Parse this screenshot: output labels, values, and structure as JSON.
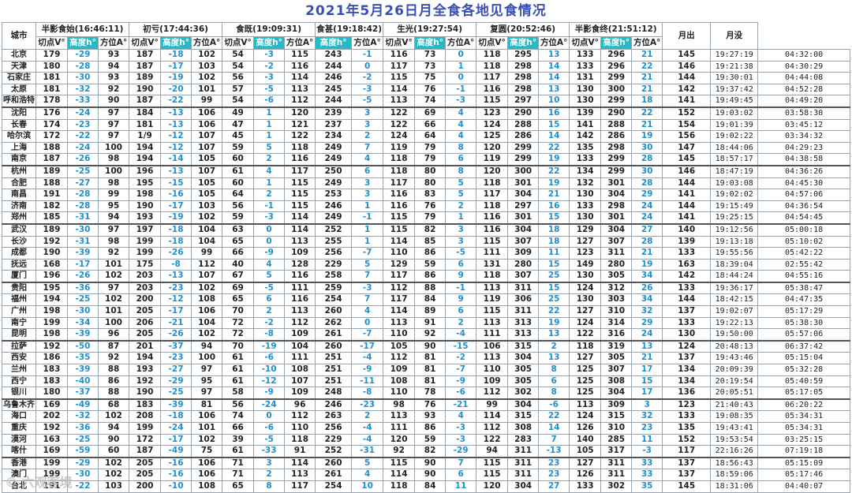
{
  "title": "2021年5月26日月全食各地见食情况",
  "headers": {
    "city": "城市",
    "events": [
      {
        "name": "半影食始(16:46:11)",
        "cols": [
          "切点V°",
          "高度h°",
          "方位A°"
        ]
      },
      {
        "name": "初亏(17:44:36)",
        "cols": [
          "切点V°",
          "高度h°",
          "方位A°"
        ]
      },
      {
        "name": "食既(19:09:31)",
        "cols": [
          "切点V°",
          "高度h°",
          "方位A°"
        ]
      },
      {
        "name": "食甚(19:18:42)",
        "cols": [
          "高度h°",
          "方位A°"
        ]
      },
      {
        "name": "生光(19:27:54)",
        "cols": [
          "切点V°",
          "高度h°",
          "方位A°"
        ]
      },
      {
        "name": "复圆(20:52:46)",
        "cols": [
          "切点V°",
          "高度h°",
          "方位A°"
        ]
      },
      {
        "name": "半影食终(21:51:12)",
        "cols": [
          "切点V°",
          "高度h°",
          "方位A°"
        ]
      }
    ],
    "moonrise": "月出",
    "moonset": "月没"
  },
  "rows": [
    [
      "北京",
      "179",
      "-29",
      "93",
      "187",
      "-18",
      "102",
      "54",
      "-3",
      "115",
      "243",
      "-1",
      "116",
      "73",
      "0",
      "118",
      "295",
      "13",
      "133",
      "296",
      "21",
      "145",
      "19:27:19",
      "04:32:00"
    ],
    [
      "天津",
      "180",
      "-28",
      "94",
      "187",
      "-17",
      "103",
      "54",
      "-2",
      "116",
      "244",
      "0",
      "117",
      "73",
      "1",
      "118",
      "298",
      "14",
      "133",
      "296",
      "22",
      "146",
      "19:21:38",
      "04:30:29"
    ],
    [
      "石家庄",
      "181",
      "-30",
      "93",
      "189",
      "-19",
      "102",
      "56",
      "-3",
      "114",
      "246",
      "-2",
      "115",
      "75",
      "0",
      "117",
      "298",
      "14",
      "131",
      "299",
      "21",
      "144",
      "19:30:01",
      "04:44:08"
    ],
    [
      "太原",
      "181",
      "-32",
      "92",
      "190",
      "-20",
      "101",
      "57",
      "-5",
      "113",
      "245",
      "-3",
      "114",
      "76",
      "-1",
      "116",
      "298",
      "13",
      "130",
      "300",
      "21",
      "142",
      "19:37:42",
      "04:52:28"
    ],
    [
      "呼和浩特",
      "178",
      "-33",
      "90",
      "187",
      "-22",
      "99",
      "54",
      "-6",
      "112",
      "244",
      "-5",
      "113",
      "74",
      "-3",
      "115",
      "297",
      "10",
      "130",
      "299",
      "18",
      "141",
      "19:49:45",
      "04:49:20"
    ],
    [
      "沈阳",
      "176",
      "-24",
      "97",
      "184",
      "-13",
      "106",
      "49",
      "1",
      "120",
      "239",
      "3",
      "122",
      "69",
      "4",
      "123",
      "290",
      "16",
      "139",
      "290",
      "22",
      "152",
      "19:03:02",
      "03:58:30"
    ],
    [
      "长春",
      "174",
      "-23",
      "97",
      "181",
      "-13",
      "106",
      "47",
      "1",
      "121",
      "237",
      "3",
      "122",
      "66",
      "4",
      "124",
      "288",
      "15",
      "141",
      "288",
      "21",
      "154",
      "19:01:39",
      "03:45:12"
    ],
    [
      "哈尔滨",
      "172",
      "-22",
      "97",
      "1/9",
      "-12",
      "107",
      "45",
      "1",
      "122",
      "234",
      "2",
      "124",
      "64",
      "4",
      "125",
      "286",
      "14",
      "142",
      "286",
      "19",
      "156",
      "19:02:22",
      "03:34:32"
    ],
    [
      "上海",
      "188",
      "-24",
      "100",
      "194",
      "-12",
      "107",
      "59",
      "5",
      "118",
      "249",
      "7",
      "119",
      "79",
      "8",
      "120",
      "299",
      "22",
      "135",
      "298",
      "30",
      "147",
      "18:44:06",
      "04:29:23"
    ],
    [
      "南京",
      "187",
      "-26",
      "98",
      "194",
      "-14",
      "105",
      "60",
      "2",
      "116",
      "249",
      "4",
      "118",
      "79",
      "6",
      "119",
      "299",
      "19",
      "133",
      "299",
      "28",
      "145",
      "18:57:17",
      "04:38:58"
    ],
    [
      "杭州",
      "189",
      "-25",
      "100",
      "196",
      "-13",
      "107",
      "61",
      "4",
      "117",
      "250",
      "6",
      "118",
      "80",
      "8",
      "120",
      "300",
      "22",
      "134",
      "299",
      "30",
      "146",
      "18:47:19",
      "04:36:26"
    ],
    [
      "合肥",
      "188",
      "-27",
      "98",
      "195",
      "-15",
      "105",
      "60",
      "1",
      "115",
      "249",
      "3",
      "117",
      "80",
      "5",
      "118",
      "301",
      "19",
      "132",
      "301",
      "28",
      "144",
      "19:03:08",
      "04:45:30"
    ],
    [
      "南昌",
      "191",
      "-28",
      "99",
      "198",
      "-16",
      "105",
      "64",
      "2",
      "115",
      "253",
      "3",
      "116",
      "83",
      "5",
      "117",
      "304",
      "21",
      "130",
      "304",
      "29",
      "141",
      "19:02:02",
      "04:57:06"
    ],
    [
      "济南",
      "182",
      "-28",
      "95",
      "190",
      "-17",
      "103",
      "56",
      "-1",
      "115",
      "246",
      "1",
      "116",
      "76",
      "2",
      "118",
      "297",
      "16",
      "133",
      "298",
      "24",
      "144",
      "19:15:49",
      "04:36:54"
    ],
    [
      "郑州",
      "185",
      "-31",
      "94",
      "193",
      "-19",
      "102",
      "59",
      "-3",
      "114",
      "249",
      "-1",
      "115",
      "79",
      "1",
      "116",
      "301",
      "15",
      "130",
      "301",
      "24",
      "141",
      "19:25:15",
      "04:54:45"
    ],
    [
      "武汉",
      "189",
      "-30",
      "97",
      "197",
      "-18",
      "104",
      "63",
      "0",
      "114",
      "252",
      "1",
      "115",
      "82",
      "3",
      "116",
      "304",
      "18",
      "129",
      "304",
      "27",
      "140",
      "19:12:56",
      "05:00:18"
    ],
    [
      "长沙",
      "192",
      "-31",
      "98",
      "199",
      "-18",
      "104",
      "65",
      "0",
      "113",
      "255",
      "1",
      "114",
      "85",
      "3",
      "115",
      "307",
      "18",
      "127",
      "307",
      "28",
      "139",
      "19:13:18",
      "05:10:02"
    ],
    [
      "成都",
      "190",
      "-39",
      "92",
      "199",
      "-26",
      "99",
      "66",
      "-9",
      "109",
      "256",
      "-7",
      "110",
      "86",
      "-5",
      "111",
      "309",
      "11",
      "123",
      "311",
      "21",
      "133",
      "19:55:56",
      "05:42:22"
    ],
    [
      "抚远",
      "168",
      "-17",
      "101",
      "175",
      "-8",
      "112",
      "40",
      "4",
      "128",
      "229",
      "5",
      "129",
      "59",
      "6",
      "131",
      "280",
      "15",
      "149",
      "280",
      "19",
      "163",
      "18:39:04",
      "02:55:42"
    ],
    [
      "厦门",
      "196",
      "-26",
      "102",
      "203",
      "-13",
      "107",
      "67",
      "5",
      "116",
      "258",
      "7",
      "117",
      "86",
      "9",
      "118",
      "307",
      "25",
      "130",
      "305",
      "34",
      "142",
      "18:44:24",
      "04:55:16"
    ],
    [
      "贵阳",
      "195",
      "-36",
      "97",
      "203",
      "-23",
      "102",
      "69",
      "-5",
      "111",
      "259",
      "-3",
      "112",
      "88",
      "-1",
      "113",
      "311",
      "15",
      "124",
      "312",
      "26",
      "133",
      "19:36:17",
      "05:38:47"
    ],
    [
      "福州",
      "194",
      "-25",
      "102",
      "200",
      "-12",
      "108",
      "65",
      "6",
      "116",
      "254",
      "7",
      "117",
      "84",
      "9",
      "119",
      "306",
      "25",
      "130",
      "303",
      "34",
      "144",
      "18:42:15",
      "04:47:35"
    ],
    [
      "广州",
      "198",
      "-30",
      "101",
      "205",
      "-17",
      "106",
      "70",
      "2",
      "113",
      "260",
      "4",
      "114",
      "89",
      "6",
      "115",
      "311",
      "22",
      "127",
      "310",
      "32",
      "137",
      "19:02:07",
      "05:17:29"
    ],
    [
      "南宁",
      "199",
      "-34",
      "100",
      "206",
      "-21",
      "104",
      "72",
      "-2",
      "112",
      "262",
      "0",
      "113",
      "91",
      "2",
      "113",
      "313",
      "19",
      "124",
      "314",
      "29",
      "133",
      "19:22:13",
      "05:38:30"
    ],
    [
      "昆明",
      "198",
      "-39",
      "96",
      "205",
      "-26",
      "102",
      "72",
      "-8",
      "109",
      "261",
      "-7",
      "110",
      "92",
      "-4",
      "111",
      "313",
      "13",
      "122",
      "316",
      "24",
      "130",
      "19:50:00",
      "05:57:06"
    ],
    [
      "拉萨",
      "192",
      "-50",
      "87",
      "201",
      "-37",
      "94",
      "70",
      "-19",
      "104",
      "260",
      "-17",
      "105",
      "90",
      "-15",
      "106",
      "315",
      "2",
      "118",
      "319",
      "13",
      "124",
      "20:48:13",
      "06:37:42"
    ],
    [
      "西安",
      "186",
      "-35",
      "92",
      "194",
      "-23",
      "100",
      "61",
      "-6",
      "111",
      "251",
      "-4",
      "112",
      "81",
      "-2",
      "113",
      "304",
      "13",
      "127",
      "305",
      "21",
      "137",
      "19:43:46",
      "05:15:04"
    ],
    [
      "兰州",
      "183",
      "-39",
      "88",
      "193",
      "-27",
      "97",
      "61",
      "-10",
      "108",
      "251",
      "-9",
      "109",
      "81",
      "-7",
      "110",
      "305",
      "8",
      "125",
      "307",
      "17",
      "134",
      "20:09:39",
      "05:32:28"
    ],
    [
      "西宁",
      "183",
      "-40",
      "86",
      "192",
      "-29",
      "95",
      "61",
      "-12",
      "107",
      "251",
      "-11",
      "108",
      "81",
      "-9",
      "109",
      "305",
      "6",
      "125",
      "308",
      "15",
      "134",
      "20:19:54",
      "05:40:59"
    ],
    [
      "银川",
      "180",
      "-37",
      "88",
      "190",
      "-25",
      "97",
      "58",
      "-9",
      "109",
      "248",
      "-8",
      "110",
      "78",
      "-6",
      "112",
      "302",
      "8",
      "125",
      "304",
      "17",
      "136",
      "20:05:51",
      "05:17:05"
    ],
    [
      "乌鲁木齐",
      "169",
      "-49",
      "68",
      "183",
      "-39",
      "81",
      "56",
      "-24",
      "96",
      "246",
      "-23",
      "98",
      "76",
      "-21",
      "99",
      "304",
      "-6",
      "113",
      "309",
      "3",
      "123",
      "21:40:43",
      "06:20:22"
    ],
    [
      "海口",
      "202",
      "-32",
      "102",
      "208",
      "-18",
      "106",
      "74",
      "0",
      "112",
      "263",
      "2",
      "113",
      "93",
      "4",
      "114",
      "315",
      "22",
      "124",
      "315",
      "32",
      "133",
      "19:08:35",
      "05:34:31"
    ],
    [
      "重庆",
      "192",
      "-36",
      "94",
      "199",
      "-24",
      "101",
      "66",
      "-6",
      "110",
      "256",
      "-4",
      "111",
      "86",
      "-3",
      "112",
      "308",
      "14",
      "126",
      "310",
      "23",
      "135",
      "19:43:41",
      "05:34:31"
    ],
    [
      "漠河",
      "163",
      "-25",
      "90",
      "172",
      "-17",
      "102",
      "39",
      "-5",
      "118",
      "229",
      "-4",
      "120",
      "59",
      "-3",
      "122",
      "283",
      "7",
      "140",
      "285",
      "11",
      "152",
      "19:53:54",
      "03:25:15"
    ],
    [
      "喀什",
      "169",
      "-59",
      "60",
      "187",
      "-49",
      "75",
      "61",
      "-33",
      "91",
      "252",
      "-31",
      "92",
      "82",
      "-29",
      "94",
      "311",
      "-13",
      "105",
      "317",
      "-3",
      "117",
      "22:16:26",
      "07:19:18"
    ],
    [
      "香港",
      "199",
      "-29",
      "102",
      "205",
      "-16",
      "106",
      "71",
      "3",
      "114",
      "260",
      "5",
      "115",
      "90",
      "7",
      "115",
      "311",
      "23",
      "127",
      "311",
      "33",
      "137",
      "18:56:43",
      "05:15:09"
    ],
    [
      "澳门",
      "199",
      "-30",
      "102",
      "205",
      "-16",
      "106",
      "71",
      "2",
      "113",
      "261",
      "4",
      "114",
      "90",
      "6",
      "115",
      "311",
      "23",
      "126",
      "311",
      "33",
      "137",
      "18:59:06",
      "05:17:46"
    ],
    [
      "台北",
      "191",
      "-22",
      "103",
      "200",
      "-10",
      "108",
      "65",
      "8",
      "117",
      "254",
      "10",
      "118",
      "84",
      "11",
      "120",
      "304",
      "27",
      "133",
      "302",
      "35",
      "145",
      "18:31:06",
      "04:40:07"
    ]
  ],
  "group_ends": [
    4,
    9,
    14,
    19,
    24,
    29,
    34
  ],
  "watermark": "© 六观客境"
}
